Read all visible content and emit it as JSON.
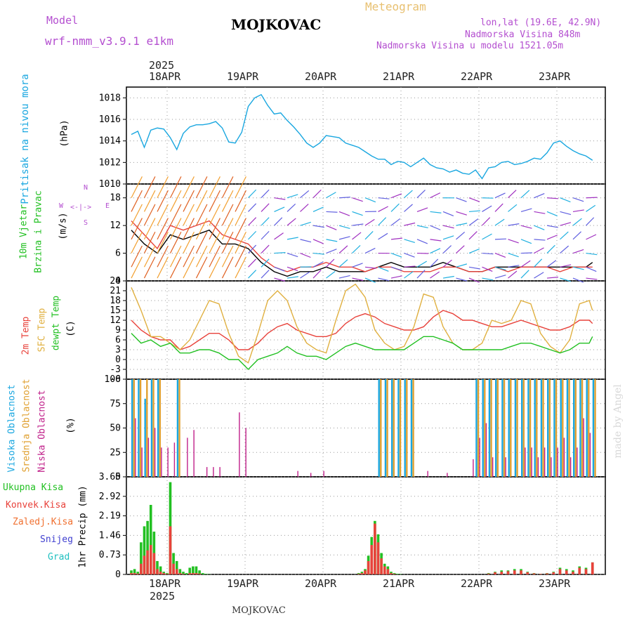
{
  "header": {
    "model_label": "Model",
    "model_name": "wrf-nmm_v3.9.1 e1km",
    "station": "MOJKOVAC",
    "meteogram": "Meteogram",
    "lonlat": "lon,lat (19.6E, 42.9N)",
    "altitude": "Nadmorska Visina 848m",
    "model_altitude": "Nadmorska Visina u modelu 1521.05m"
  },
  "footer": {
    "station": "MOJKOVAC",
    "credit": "made by Angel"
  },
  "colors": {
    "pressure": "#1aa7e0",
    "t2m": "#e8423b",
    "sfc": "#e0b040",
    "dewpt": "#22c022",
    "high": "#1aa7e0",
    "mid": "#e0a030",
    "low": "#c0208a",
    "precip_total": "#22c022",
    "precip_conv": "#e8423b",
    "label_purple": "#b44fd0"
  },
  "chart_data": [
    {
      "type": "line",
      "name": "pressure",
      "y_label_colored": "Pritisak na nivou mora",
      "unit": "(hPa)",
      "ylim": [
        1010,
        1019
      ],
      "yticks": [
        1010,
        1012,
        1014,
        1016,
        1018
      ],
      "x_top_labels": [
        "18APR",
        "19APR",
        "20APR",
        "21APR",
        "22APR",
        "23APR"
      ],
      "x_top_year": "2025",
      "x": [
        0,
        2,
        4,
        6,
        8,
        10,
        12,
        14,
        16,
        18,
        20,
        22,
        24,
        26,
        28,
        30,
        32,
        34,
        36,
        38,
        40,
        42,
        44,
        46,
        48,
        50,
        52,
        54,
        56,
        58,
        60,
        62,
        64,
        66,
        68,
        70,
        72,
        74,
        76,
        78,
        80,
        82,
        84,
        86,
        88,
        90,
        92,
        94,
        96,
        98,
        100,
        102,
        104,
        106,
        108,
        110,
        112,
        114,
        116,
        118,
        120,
        122,
        124,
        126,
        128,
        130,
        132,
        134,
        136,
        138,
        140,
        142
      ],
      "values": [
        1014.6,
        1014.9,
        1013.4,
        1015.0,
        1015.2,
        1015.1,
        1014.3,
        1013.2,
        1014.7,
        1015.3,
        1015.5,
        1015.5,
        1015.6,
        1015.8,
        1015.2,
        1013.9,
        1013.8,
        1014.8,
        1017.2,
        1018.0,
        1018.3,
        1017.3,
        1016.5,
        1016.6,
        1015.9,
        1015.3,
        1014.6,
        1013.8,
        1013.4,
        1013.8,
        1014.5,
        1014.4,
        1014.3,
        1013.8,
        1013.6,
        1013.4,
        1013.0,
        1012.6,
        1012.3,
        1012.3,
        1011.8,
        1012.1,
        1012.0,
        1011.6,
        1012.0,
        1012.4,
        1011.8,
        1011.5,
        1011.4,
        1011.1,
        1011.3,
        1011.0,
        1010.9,
        1011.3,
        1010.5,
        1011.5,
        1011.6,
        1012.0,
        1012.1,
        1011.8,
        1011.9,
        1012.1,
        1012.4,
        1012.3,
        1012.9,
        1013.8,
        1014.0,
        1013.5,
        1013.1,
        1012.8,
        1012.6,
        1012.2
      ]
    },
    {
      "type": "line",
      "name": "wind",
      "y_label_colored": [
        "10m Vjetar",
        "Brzina i Pravac"
      ],
      "unit": "(m/s)",
      "ylim": [
        0,
        21
      ],
      "yticks": [
        0,
        6,
        12,
        18
      ],
      "compass": {
        "n": "N",
        "s": "S",
        "w": "W",
        "e": "E"
      },
      "x": [
        0,
        4,
        8,
        12,
        16,
        20,
        24,
        28,
        32,
        36,
        40,
        44,
        48,
        52,
        56,
        60,
        64,
        68,
        72,
        76,
        80,
        84,
        88,
        92,
        96,
        100,
        104,
        108,
        112,
        116,
        120,
        124,
        128,
        132,
        136,
        140,
        142
      ],
      "speed": [
        11,
        8,
        6,
        10,
        9,
        10,
        11,
        8,
        8,
        7,
        4,
        2,
        1,
        2,
        2,
        3,
        2,
        2,
        2,
        3,
        4,
        3,
        3,
        3,
        4,
        3,
        2,
        2,
        3,
        3,
        3,
        3,
        3,
        3,
        3,
        3,
        4
      ],
      "gust": [
        13,
        10,
        7,
        12,
        11,
        12,
        13,
        10,
        9,
        8,
        5,
        3,
        2,
        3,
        3,
        4,
        3,
        3,
        2,
        3,
        3,
        2,
        2,
        2,
        3,
        3,
        2,
        2,
        3,
        2,
        3,
        3,
        3,
        2,
        3,
        3,
        3
      ]
    },
    {
      "type": "line",
      "name": "temperature",
      "series_labels": [
        "2m Temp",
        "SFC Temp",
        "dewpt Temp"
      ],
      "unit": "(C)",
      "ylim": [
        -6,
        24
      ],
      "yticks": [
        -6,
        -3,
        0,
        3,
        6,
        9,
        12,
        15,
        18,
        21,
        24
      ],
      "x": [
        0,
        3,
        6,
        9,
        12,
        15,
        18,
        21,
        24,
        27,
        30,
        33,
        36,
        39,
        42,
        45,
        48,
        51,
        54,
        57,
        60,
        63,
        66,
        69,
        72,
        75,
        78,
        81,
        84,
        87,
        90,
        93,
        96,
        99,
        102,
        105,
        108,
        111,
        114,
        117,
        120,
        123,
        126,
        129,
        132,
        135,
        138,
        141,
        142
      ],
      "series": [
        {
          "name": "2m Temp",
          "values": [
            12,
            9,
            7,
            6,
            6,
            3,
            4,
            6,
            8,
            8,
            6,
            3,
            3,
            5,
            8,
            10,
            11,
            9,
            8,
            7,
            7,
            8,
            11,
            13,
            14,
            13,
            11,
            10,
            9,
            9,
            10,
            13,
            15,
            14,
            12,
            12,
            11,
            10,
            10,
            11,
            12,
            11,
            10,
            9,
            9,
            10,
            12,
            12,
            11
          ]
        },
        {
          "name": "SFC Temp",
          "values": [
            22,
            15,
            7,
            7,
            5,
            3,
            6,
            12,
            18,
            17,
            8,
            1,
            -1,
            8,
            18,
            21,
            18,
            10,
            5,
            3,
            2,
            12,
            21,
            23,
            19,
            9,
            5,
            3,
            4,
            10,
            20,
            19,
            10,
            5,
            3,
            3,
            5,
            12,
            11,
            12,
            18,
            17,
            8,
            4,
            2,
            6,
            17,
            18,
            15
          ]
        },
        {
          "name": "dewpt Temp",
          "values": [
            8,
            5,
            6,
            4,
            5,
            2,
            2,
            3,
            3,
            2,
            0,
            0,
            -3,
            0,
            1,
            2,
            4,
            2,
            1,
            1,
            0,
            2,
            4,
            5,
            4,
            3,
            3,
            3,
            3,
            5,
            7,
            7,
            6,
            5,
            3,
            3,
            3,
            3,
            3,
            4,
            5,
            5,
            4,
            3,
            2,
            3,
            5,
            5,
            7
          ]
        }
      ]
    },
    {
      "type": "bar",
      "name": "cloud",
      "series_labels": [
        "Visoka Oblacnost",
        "Srednja Oblacnost",
        "Niska Oblacnost"
      ],
      "unit": "(%)",
      "ylim": [
        0,
        100
      ],
      "yticks": [
        0,
        25,
        50,
        75,
        100
      ],
      "x": [
        0,
        2,
        4,
        6,
        8,
        10,
        12,
        14,
        16,
        18,
        20,
        22,
        24,
        26,
        28,
        30,
        32,
        34,
        36,
        38,
        40,
        42,
        44,
        46,
        48,
        50,
        52,
        54,
        56,
        58,
        60,
        62,
        64,
        66,
        68,
        70,
        72,
        74,
        76,
        78,
        80,
        82,
        84,
        86,
        88,
        90,
        92,
        94,
        96,
        98,
        100,
        102,
        104,
        106,
        108,
        110,
        112,
        114,
        116,
        118,
        120,
        122,
        124,
        126,
        128,
        130,
        132,
        134,
        136,
        138,
        140,
        142
      ],
      "series": [
        {
          "name": "Visoka Oblacnost",
          "values": [
            100,
            100,
            80,
            100,
            100,
            0,
            0,
            100,
            0,
            0,
            0,
            0,
            0,
            0,
            0,
            0,
            0,
            0,
            0,
            0,
            0,
            0,
            0,
            0,
            0,
            0,
            0,
            0,
            0,
            0,
            0,
            0,
            0,
            0,
            0,
            0,
            0,
            0,
            100,
            100,
            100,
            100,
            100,
            100,
            0,
            0,
            0,
            0,
            0,
            0,
            0,
            0,
            0,
            100,
            100,
            100,
            100,
            100,
            100,
            100,
            100,
            100,
            100,
            100,
            100,
            100,
            100,
            100,
            100,
            100,
            100,
            100
          ]
        },
        {
          "name": "Srednja Oblacnost",
          "values": [
            100,
            100,
            100,
            100,
            100,
            0,
            0,
            100,
            0,
            0,
            0,
            0,
            0,
            0,
            0,
            0,
            0,
            0,
            0,
            0,
            0,
            0,
            0,
            0,
            0,
            0,
            0,
            0,
            0,
            0,
            0,
            0,
            0,
            0,
            0,
            0,
            0,
            0,
            100,
            100,
            100,
            100,
            100,
            100,
            0,
            0,
            0,
            0,
            0,
            0,
            0,
            0,
            0,
            100,
            100,
            100,
            100,
            100,
            100,
            100,
            100,
            100,
            100,
            100,
            100,
            100,
            100,
            100,
            100,
            100,
            100,
            100
          ]
        },
        {
          "name": "Niska Oblacnost",
          "values": [
            60,
            30,
            40,
            50,
            30,
            30,
            35,
            0,
            40,
            48,
            0,
            10,
            10,
            10,
            0,
            0,
            66,
            50,
            0,
            0,
            0,
            0,
            0,
            0,
            0,
            6,
            0,
            4,
            0,
            6,
            0,
            0,
            0,
            0,
            0,
            0,
            0,
            0,
            0,
            0,
            0,
            0,
            0,
            0,
            0,
            6,
            0,
            0,
            4,
            0,
            0,
            0,
            18,
            40,
            55,
            20,
            0,
            20,
            0,
            0,
            30,
            30,
            20,
            30,
            20,
            30,
            40,
            20,
            30,
            60,
            45,
            0
          ]
        }
      ]
    },
    {
      "type": "bar",
      "name": "precipitation",
      "series_labels": [
        "Ukupna Kisa",
        "Konvek.Kisa",
        "Zaledj.Kisa",
        "Snijeg",
        "Grad"
      ],
      "unit": "1hr Precip (mm)",
      "ylim": [
        0,
        3.65
      ],
      "yticks": [
        0,
        0.73,
        1.46,
        2.19,
        2.92,
        3.65
      ],
      "x_bottom_labels": [
        "18APR",
        "19APR",
        "20APR",
        "21APR",
        "22APR",
        "23APR"
      ],
      "x_bottom_year": "2025",
      "x": [
        0,
        1,
        2,
        3,
        4,
        5,
        6,
        7,
        8,
        9,
        10,
        11,
        12,
        13,
        14,
        15,
        16,
        17,
        18,
        19,
        20,
        21,
        22,
        23,
        24,
        70,
        71,
        72,
        73,
        74,
        75,
        76,
        77,
        78,
        79,
        80,
        81,
        82,
        83,
        110,
        112,
        114,
        116,
        118,
        120,
        122,
        124,
        126,
        128,
        130,
        132,
        134,
        136,
        138,
        140,
        142
      ],
      "series": [
        {
          "name": "Ukupna Kisa",
          "values": [
            0.15,
            0.2,
            0.1,
            1.2,
            1.8,
            2.0,
            2.6,
            1.6,
            0.5,
            0.3,
            0.1,
            0.05,
            3.45,
            0.8,
            0.5,
            0.2,
            0.1,
            0.05,
            0.25,
            0.3,
            0.3,
            0.15,
            0.05,
            0.02,
            0.01,
            0.05,
            0.1,
            0.2,
            0.7,
            1.4,
            2.0,
            1.5,
            0.8,
            0.4,
            0.3,
            0.1,
            0.05,
            0.02,
            0.01,
            0.05,
            0.1,
            0.15,
            0.15,
            0.2,
            0.2,
            0.1,
            0.05,
            0.02,
            0.05,
            0.1,
            0.25,
            0.2,
            0.15,
            0.3,
            0.25,
            0.45
          ]
        },
        {
          "name": "Konvek.Kisa",
          "values": [
            0.05,
            0.05,
            0.03,
            0.4,
            0.7,
            0.9,
            1.1,
            0.8,
            0.2,
            0.1,
            0.05,
            0.02,
            1.8,
            0.4,
            0.2,
            0.05,
            0.02,
            0,
            0.05,
            0.05,
            0.05,
            0.03,
            0,
            0,
            0,
            0.02,
            0.05,
            0.15,
            0.5,
            1.1,
            1.9,
            1.2,
            0.6,
            0.3,
            0.2,
            0.05,
            0.02,
            0,
            0,
            0.03,
            0.08,
            0.1,
            0.12,
            0.15,
            0.15,
            0.08,
            0.04,
            0.02,
            0.04,
            0.08,
            0.2,
            0.15,
            0.1,
            0.25,
            0.2,
            0.45
          ]
        }
      ]
    }
  ]
}
